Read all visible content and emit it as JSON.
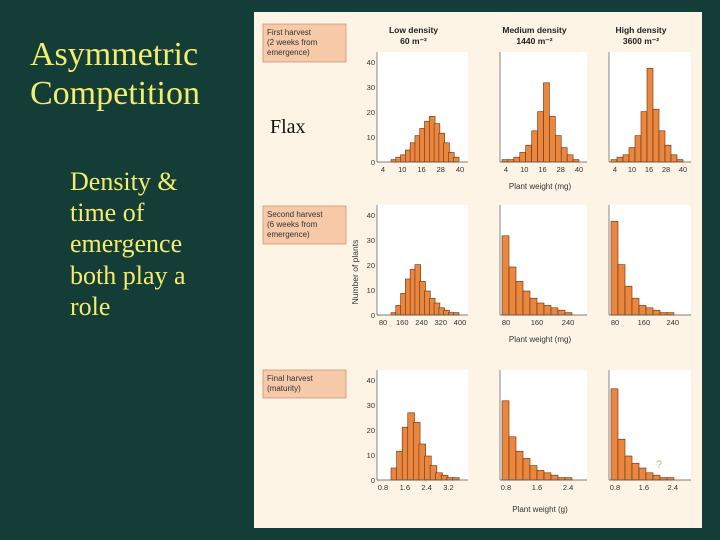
{
  "slide": {
    "title_lines": [
      "Asymmetric",
      "Competition"
    ],
    "body_lines": [
      "Density &",
      "time of",
      "emergence",
      "both play a",
      "role"
    ],
    "annotation": "Flax",
    "page_mark": "?"
  },
  "colors": {
    "background": "#133d36",
    "title": "#f2ec6f",
    "figure_bg": "#fdf4e5",
    "panel_bg": "#ffffff",
    "label_box": "#f6c9a8",
    "bar": "#e9873f",
    "bar_edge": "#6a2e14",
    "axis_text": "#333333"
  },
  "figure": {
    "columns": [
      {
        "name": "Low density",
        "value": "60 m⁻²"
      },
      {
        "name": "Medium density",
        "value": "1440 m⁻²"
      },
      {
        "name": "High density",
        "value": "3600 m⁻²"
      }
    ],
    "y_axis_label": "Number of plants",
    "rows": [
      {
        "label_lines": [
          "First harvest",
          "(2 weeks from",
          "emergence)"
        ],
        "y_ticks": [
          "0",
          "10",
          "20",
          "30",
          "40"
        ],
        "x_ticks": [
          [
            "4",
            "10",
            "16",
            "28",
            "40"
          ],
          [
            "4",
            "10",
            "16",
            "28",
            "40"
          ],
          [
            "4",
            "10",
            "16",
            "28",
            "40"
          ]
        ],
        "xlabel": "Plant weight (mg)"
      },
      {
        "label_lines": [
          "Second harvest",
          "(6 weeks from",
          "emergence)"
        ],
        "y_ticks": [
          "0",
          "10",
          "20",
          "30",
          "40"
        ],
        "x_ticks": [
          [
            "80",
            "160",
            "240",
            "320",
            "400"
          ],
          [
            "80",
            "160",
            "240"
          ],
          [
            "80",
            "160",
            "240"
          ]
        ],
        "xlabel": "Plant weight (mg)"
      },
      {
        "label_lines": [
          "Final harvest",
          "(maturity)"
        ],
        "y_ticks": [
          "0",
          "10",
          "20",
          "30",
          "40"
        ],
        "x_ticks": [
          [
            "0.8",
            "1.6",
            "2.4",
            "3.2"
          ],
          [
            "0.8",
            "1.6",
            "2.4"
          ],
          [
            "0.8",
            "1.6",
            "2.4"
          ]
        ],
        "xlabel": "Plant weight (g)"
      }
    ]
  },
  "chart_data": [
    {
      "type": "bar",
      "panel": "First harvest – Low density",
      "ylim": [
        0,
        45
      ],
      "values": [
        1,
        2,
        3,
        5,
        8,
        11,
        14,
        17,
        19,
        16,
        12,
        8,
        4,
        2
      ]
    },
    {
      "type": "bar",
      "panel": "First harvest – Medium density",
      "ylim": [
        0,
        45
      ],
      "values": [
        1,
        1,
        2,
        4,
        7,
        13,
        21,
        33,
        19,
        11,
        6,
        3,
        1
      ]
    },
    {
      "type": "bar",
      "panel": "First harvest – High density",
      "ylim": [
        0,
        45
      ],
      "values": [
        1,
        2,
        3,
        6,
        11,
        21,
        39,
        22,
        13,
        7,
        3,
        1
      ]
    },
    {
      "type": "bar",
      "panel": "Second harvest – Low density",
      "ylim": [
        0,
        45
      ],
      "values": [
        1,
        4,
        9,
        15,
        19,
        21,
        14,
        10,
        7,
        5,
        3,
        2,
        1,
        1
      ]
    },
    {
      "type": "bar",
      "panel": "Second harvest – Medium density",
      "ylim": [
        0,
        45
      ],
      "values": [
        33,
        20,
        14,
        10,
        7,
        5,
        4,
        3,
        2,
        1
      ]
    },
    {
      "type": "bar",
      "panel": "Second harvest – High density",
      "ylim": [
        0,
        45
      ],
      "values": [
        39,
        21,
        12,
        7,
        4,
        3,
        2,
        1,
        1
      ]
    },
    {
      "type": "bar",
      "panel": "Final harvest – Low density",
      "ylim": [
        0,
        45
      ],
      "values": [
        5,
        12,
        22,
        28,
        24,
        15,
        10,
        6,
        3,
        2,
        1,
        1
      ]
    },
    {
      "type": "bar",
      "panel": "Final harvest – Medium density",
      "ylim": [
        0,
        45
      ],
      "values": [
        33,
        18,
        12,
        9,
        6,
        4,
        3,
        2,
        1,
        1
      ]
    },
    {
      "type": "bar",
      "panel": "Final harvest – High density",
      "ylim": [
        0,
        45
      ],
      "values": [
        38,
        17,
        10,
        7,
        5,
        3,
        2,
        1,
        1
      ]
    }
  ]
}
